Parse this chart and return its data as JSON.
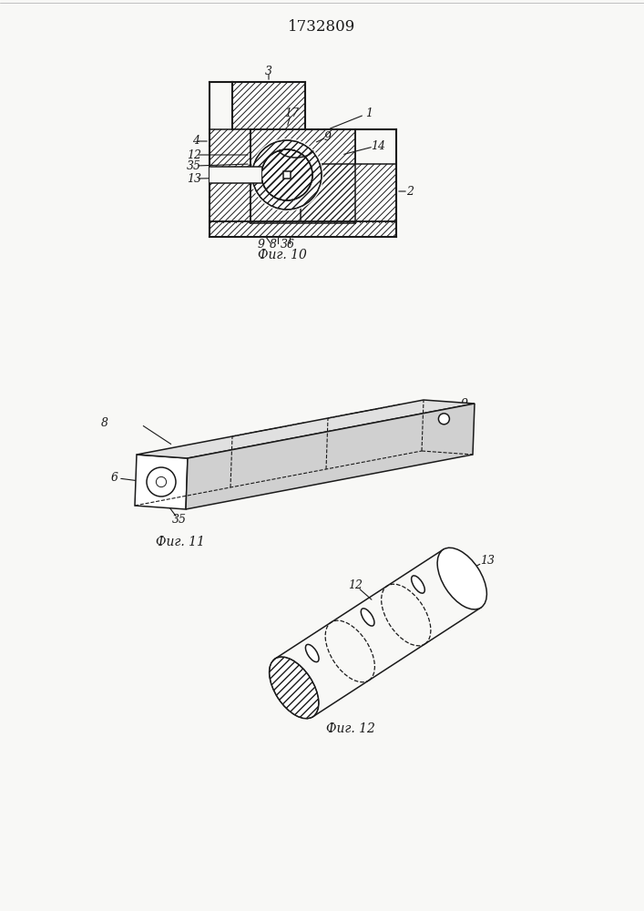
{
  "title": "1732809",
  "title_fontsize": 12,
  "fig10_caption": "Фиг. 10",
  "fig11_caption": "Фиг. 11",
  "fig12_caption": "Фиг. 12",
  "bg_color": "#f8f8f6",
  "line_color": "#1a1a1a",
  "label_fontsize": 9,
  "caption_fontsize": 10
}
